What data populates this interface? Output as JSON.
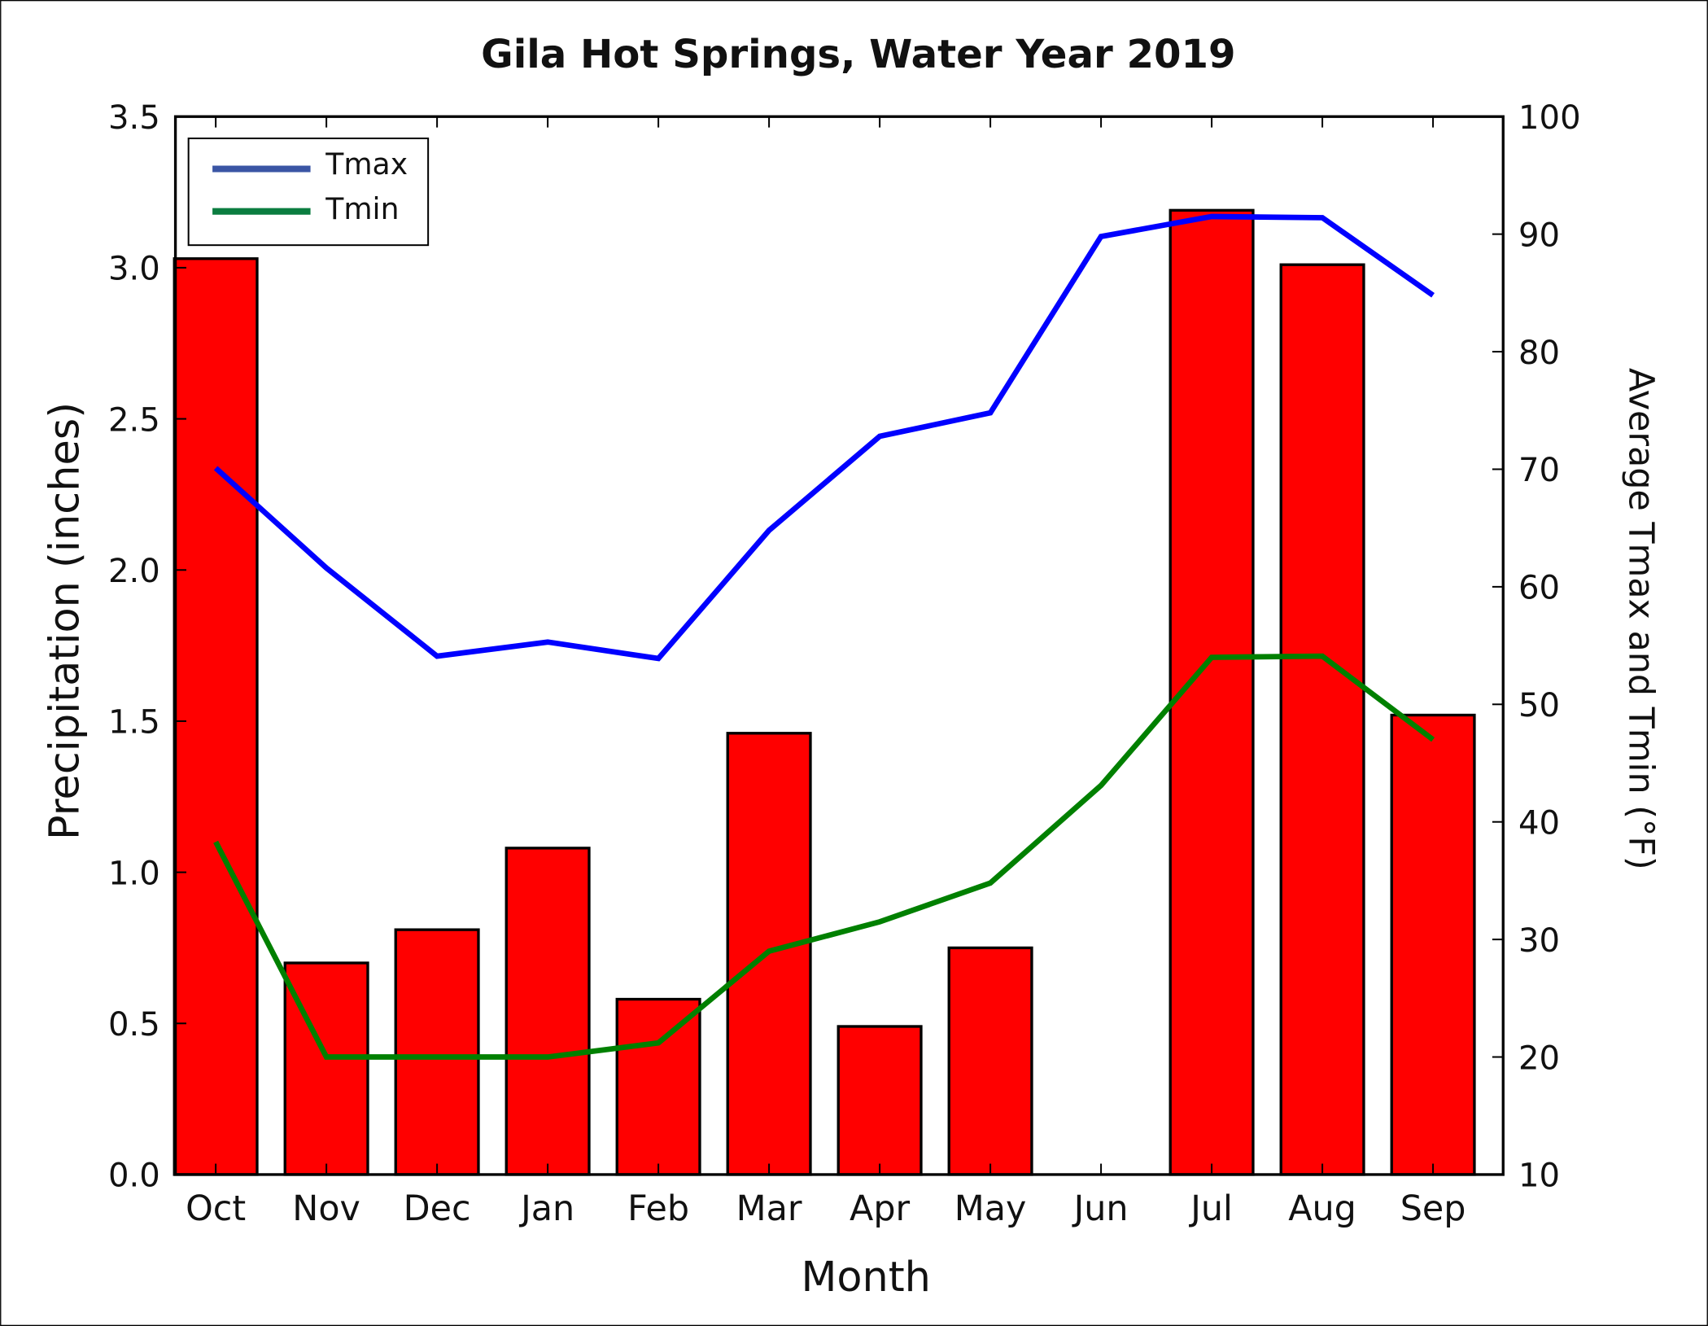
{
  "chart_data": {
    "type": "bar+line",
    "title": "Gila Hot Springs, Water Year 2019",
    "xlabel": "Month",
    "ylabel": "Precipitation (inches)",
    "y2label": "Average Tmax and Tmin (°F)",
    "categories": [
      "Oct",
      "Nov",
      "Dec",
      "Jan",
      "Feb",
      "Mar",
      "Apr",
      "May",
      "Jun",
      "Jul",
      "Aug",
      "Sep"
    ],
    "ylim": [
      0,
      3.5
    ],
    "y2lim": [
      10,
      100
    ],
    "yticks": [
      "0.0",
      "0.5",
      "1.0",
      "1.5",
      "2.0",
      "2.5",
      "3.0",
      "3.5"
    ],
    "y2ticks": [
      "10",
      "20",
      "30",
      "40",
      "50",
      "60",
      "70",
      "80",
      "90",
      "100"
    ],
    "bars": {
      "values": [
        3.03,
        0.7,
        0.81,
        1.08,
        0.58,
        1.46,
        0.49,
        0.75,
        0.0,
        3.19,
        3.01,
        1.52
      ],
      "color": "#ff0000"
    },
    "series": [
      {
        "name": "Tmax",
        "color": "#0000ff",
        "legend_color": "#3a55a4",
        "values": [
          70.1,
          61.6,
          54.1,
          55.3,
          53.9,
          64.8,
          72.8,
          74.8,
          89.8,
          91.5,
          91.4,
          84.8
        ]
      },
      {
        "name": "Tmin",
        "color": "#008000",
        "legend_color": "#0b7d40",
        "values": [
          38.3,
          20.0,
          20.0,
          20.0,
          21.2,
          29.0,
          31.5,
          34.8,
          43.1,
          54.0,
          54.1,
          47.0
        ]
      }
    ],
    "legend_position": "top-left",
    "grid": false
  }
}
